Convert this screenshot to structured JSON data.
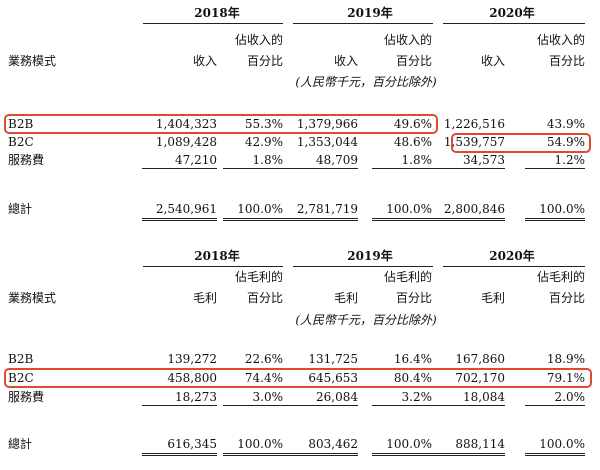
{
  "table1": {
    "years": [
      "2018年",
      "2019年",
      "2020年"
    ],
    "row_header": "業務模式",
    "col_value": "收入",
    "col_pct_line1": "佔收入的",
    "col_pct_line2": "百分比",
    "unit_note": "(人民幣千元，百分比除外)",
    "rows": [
      {
        "label": "B2B",
        "v": [
          "1,404,323",
          "1,379,966",
          "1,226,516"
        ],
        "p": [
          "55.3%",
          "49.6%",
          "43.9%"
        ]
      },
      {
        "label": "B2C",
        "v": [
          "1,089,428",
          "1,353,044",
          "1,539,757"
        ],
        "p": [
          "42.9%",
          "48.6%",
          "54.9%"
        ]
      },
      {
        "label": "服務費",
        "v": [
          "47,210",
          "48,709",
          "34,573"
        ],
        "p": [
          "1.8%",
          "1.8%",
          "1.2%"
        ]
      }
    ],
    "total": {
      "label": "總計",
      "v": [
        "2,540,961",
        "2,781,719",
        "2,800,846"
      ],
      "p": [
        "100.0%",
        "100.0%",
        "100.0%"
      ]
    }
  },
  "table2": {
    "years": [
      "2018年",
      "2019年",
      "2020年"
    ],
    "row_header": "業務模式",
    "col_value": "毛利",
    "col_pct_line1": "佔毛利的",
    "col_pct_line2": "百分比",
    "unit_note": "(人民幣千元，百分比除外)",
    "rows": [
      {
        "label": "B2B",
        "v": [
          "139,272",
          "131,725",
          "167,860"
        ],
        "p": [
          "22.6%",
          "16.4%",
          "18.9%"
        ]
      },
      {
        "label": "B2C",
        "v": [
          "458,800",
          "645,653",
          "702,170"
        ],
        "p": [
          "74.4%",
          "80.4%",
          "79.1%"
        ]
      },
      {
        "label": "服務費",
        "v": [
          "18,273",
          "26,084",
          "18,084"
        ],
        "p": [
          "3.0%",
          "3.2%",
          "2.0%"
        ]
      }
    ],
    "total": {
      "label": "總計",
      "v": [
        "616,345",
        "803,462",
        "888,114"
      ],
      "p": [
        "100.0%",
        "100.0%",
        "100.0%"
      ]
    }
  },
  "highlight_color": "#e0482f"
}
